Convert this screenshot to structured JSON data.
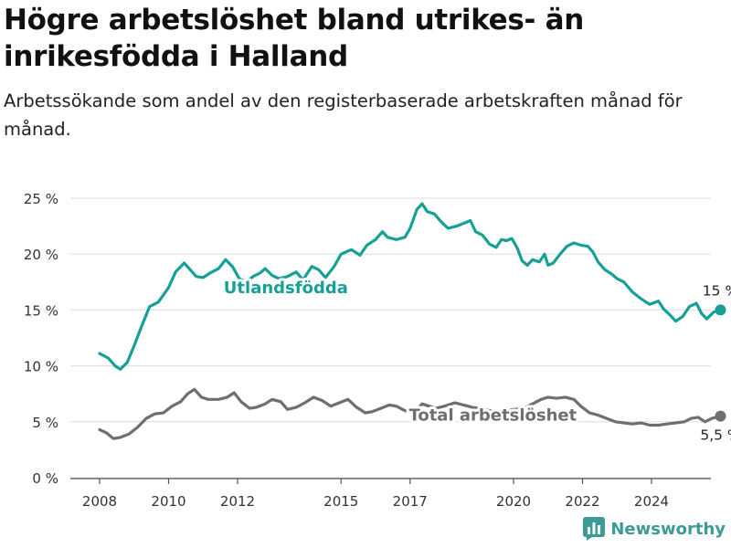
{
  "title": "Högre arbetslöshet bland utrikes- än inrikesfödda i Halland",
  "subtitle": "Arbetssökande som andel av den registerbaserade arbetskraften månad för månad.",
  "logo": {
    "text": "Newsworthy",
    "icon": "bar-chart-logo-icon"
  },
  "colors": {
    "utlandsfodda": "#17a096",
    "total": "#6e6e73",
    "grid": "#dddddd",
    "axis": "#555555"
  },
  "chart_data": {
    "type": "line",
    "title": "Högre arbetslöshet bland utrikes- än inrikesfödda i Halland",
    "subtitle": "Arbetssökande som andel av den registerbaserade arbetskraften månad för månad.",
    "xlabel": "",
    "ylabel": "",
    "xlim": [
      2007.6,
      2025.8
    ],
    "ylim": [
      0,
      25
    ],
    "y_ticks": [
      "0 %",
      "5 %",
      "10 %",
      "15 %",
      "20 %",
      "25 %"
    ],
    "x_ticks": [
      "2008",
      "2010",
      "2012",
      "2015",
      "2017",
      "2020",
      "2022",
      "2024"
    ],
    "grid": true,
    "legend": "none (labels placed on lines)",
    "series": [
      {
        "name": "Utlandsfödda",
        "color": "#17a096",
        "end_label": "15 %",
        "points": [
          [
            2008.0,
            11.1
          ],
          [
            2008.25,
            10.7
          ],
          [
            2008.45,
            10.0
          ],
          [
            2008.6,
            9.7
          ],
          [
            2008.8,
            10.3
          ],
          [
            2009.0,
            11.8
          ],
          [
            2009.2,
            13.4
          ],
          [
            2009.45,
            15.3
          ],
          [
            2009.7,
            15.7
          ],
          [
            2010.0,
            17.0
          ],
          [
            2010.2,
            18.4
          ],
          [
            2010.45,
            19.2
          ],
          [
            2010.6,
            18.7
          ],
          [
            2010.8,
            18.0
          ],
          [
            2011.0,
            17.9
          ],
          [
            2011.2,
            18.3
          ],
          [
            2011.45,
            18.7
          ],
          [
            2011.65,
            19.5
          ],
          [
            2011.85,
            18.9
          ],
          [
            2012.05,
            17.8
          ],
          [
            2012.25,
            17.5
          ],
          [
            2012.45,
            18.0
          ],
          [
            2012.65,
            18.3
          ],
          [
            2012.8,
            18.7
          ],
          [
            2013.0,
            18.1
          ],
          [
            2013.2,
            17.8
          ],
          [
            2013.45,
            18.0
          ],
          [
            2013.7,
            18.4
          ],
          [
            2013.9,
            17.7
          ],
          [
            2014.15,
            18.9
          ],
          [
            2014.35,
            18.6
          ],
          [
            2014.55,
            17.9
          ],
          [
            2014.8,
            18.9
          ],
          [
            2015.0,
            20.0
          ],
          [
            2015.3,
            20.4
          ],
          [
            2015.55,
            19.9
          ],
          [
            2015.75,
            20.8
          ],
          [
            2016.0,
            21.3
          ],
          [
            2016.2,
            22.0
          ],
          [
            2016.35,
            21.5
          ],
          [
            2016.6,
            21.3
          ],
          [
            2016.85,
            21.5
          ],
          [
            2017.0,
            22.3
          ],
          [
            2017.2,
            24.0
          ],
          [
            2017.35,
            24.5
          ],
          [
            2017.5,
            23.8
          ],
          [
            2017.7,
            23.6
          ],
          [
            2017.9,
            22.9
          ],
          [
            2018.1,
            22.3
          ],
          [
            2018.35,
            22.5
          ],
          [
            2018.6,
            22.8
          ],
          [
            2018.75,
            23.0
          ],
          [
            2018.9,
            22.0
          ],
          [
            2019.1,
            21.7
          ],
          [
            2019.3,
            20.9
          ],
          [
            2019.5,
            20.6
          ],
          [
            2019.65,
            21.3
          ],
          [
            2019.8,
            21.2
          ],
          [
            2019.95,
            21.4
          ],
          [
            2020.1,
            20.6
          ],
          [
            2020.25,
            19.4
          ],
          [
            2020.4,
            19.0
          ],
          [
            2020.55,
            19.5
          ],
          [
            2020.75,
            19.3
          ],
          [
            2020.9,
            20.0
          ],
          [
            2021.0,
            19.0
          ],
          [
            2021.15,
            19.2
          ],
          [
            2021.35,
            20.0
          ],
          [
            2021.55,
            20.7
          ],
          [
            2021.75,
            21.0
          ],
          [
            2021.95,
            20.8
          ],
          [
            2022.15,
            20.7
          ],
          [
            2022.3,
            20.2
          ],
          [
            2022.45,
            19.3
          ],
          [
            2022.65,
            18.6
          ],
          [
            2022.85,
            18.2
          ],
          [
            2023.0,
            17.8
          ],
          [
            2023.2,
            17.5
          ],
          [
            2023.45,
            16.6
          ],
          [
            2023.7,
            16.0
          ],
          [
            2023.95,
            15.5
          ],
          [
            2024.2,
            15.8
          ],
          [
            2024.35,
            15.1
          ],
          [
            2024.55,
            14.5
          ],
          [
            2024.7,
            14.0
          ],
          [
            2024.9,
            14.4
          ],
          [
            2025.1,
            15.3
          ],
          [
            2025.3,
            15.6
          ],
          [
            2025.45,
            14.7
          ],
          [
            2025.6,
            14.2
          ],
          [
            2025.8,
            14.8
          ],
          [
            2026.0,
            15.0
          ]
        ]
      },
      {
        "name": "Total arbetslöshet",
        "color": "#6e6e73",
        "end_label": "5,5 %",
        "points": [
          [
            2008.0,
            4.3
          ],
          [
            2008.2,
            4.0
          ],
          [
            2008.4,
            3.5
          ],
          [
            2008.6,
            3.6
          ],
          [
            2008.85,
            3.9
          ],
          [
            2009.1,
            4.5
          ],
          [
            2009.35,
            5.3
          ],
          [
            2009.6,
            5.7
          ],
          [
            2009.85,
            5.8
          ],
          [
            2010.1,
            6.4
          ],
          [
            2010.35,
            6.8
          ],
          [
            2010.55,
            7.5
          ],
          [
            2010.75,
            7.9
          ],
          [
            2010.95,
            7.2
          ],
          [
            2011.15,
            7.0
          ],
          [
            2011.45,
            7.0
          ],
          [
            2011.7,
            7.2
          ],
          [
            2011.9,
            7.6
          ],
          [
            2012.1,
            6.8
          ],
          [
            2012.35,
            6.2
          ],
          [
            2012.55,
            6.3
          ],
          [
            2012.8,
            6.6
          ],
          [
            2013.0,
            7.0
          ],
          [
            2013.25,
            6.8
          ],
          [
            2013.45,
            6.1
          ],
          [
            2013.7,
            6.3
          ],
          [
            2013.95,
            6.7
          ],
          [
            2014.2,
            7.2
          ],
          [
            2014.45,
            6.9
          ],
          [
            2014.7,
            6.4
          ],
          [
            2014.95,
            6.7
          ],
          [
            2015.2,
            7.0
          ],
          [
            2015.45,
            6.3
          ],
          [
            2015.7,
            5.8
          ],
          [
            2015.9,
            5.9
          ],
          [
            2016.15,
            6.2
          ],
          [
            2016.4,
            6.5
          ],
          [
            2016.6,
            6.4
          ],
          [
            2016.85,
            6.0
          ],
          [
            2017.1,
            5.8
          ],
          [
            2017.35,
            6.6
          ],
          [
            2017.55,
            6.4
          ],
          [
            2017.75,
            6.2
          ],
          [
            2018.0,
            6.4
          ],
          [
            2018.3,
            6.7
          ],
          [
            2018.55,
            6.5
          ],
          [
            2018.8,
            6.3
          ],
          [
            2019.0,
            6.2
          ],
          [
            2019.3,
            6.0
          ],
          [
            2019.55,
            5.9
          ],
          [
            2019.8,
            6.0
          ],
          [
            2020.0,
            6.1
          ],
          [
            2020.3,
            6.2
          ],
          [
            2020.55,
            6.6
          ],
          [
            2020.8,
            7.0
          ],
          [
            2021.0,
            7.2
          ],
          [
            2021.25,
            7.1
          ],
          [
            2021.5,
            7.2
          ],
          [
            2021.75,
            7.0
          ],
          [
            2021.95,
            6.4
          ],
          [
            2022.2,
            5.8
          ],
          [
            2022.45,
            5.6
          ],
          [
            2022.7,
            5.3
          ],
          [
            2022.95,
            5.0
          ],
          [
            2023.2,
            4.9
          ],
          [
            2023.45,
            4.8
          ],
          [
            2023.7,
            4.9
          ],
          [
            2023.95,
            4.7
          ],
          [
            2024.2,
            4.7
          ],
          [
            2024.45,
            4.8
          ],
          [
            2024.7,
            4.9
          ],
          [
            2024.95,
            5.0
          ],
          [
            2025.15,
            5.3
          ],
          [
            2025.35,
            5.4
          ],
          [
            2025.55,
            5.0
          ],
          [
            2025.75,
            5.3
          ],
          [
            2026.0,
            5.5
          ]
        ]
      }
    ],
    "annotations": [
      {
        "text": "Utlandsfödda",
        "series": 0,
        "x": 2013.4,
        "y": 17.0
      },
      {
        "text": "Total arbetslöshet",
        "series": 1,
        "x": 2019.4,
        "y": 5.6
      }
    ]
  }
}
